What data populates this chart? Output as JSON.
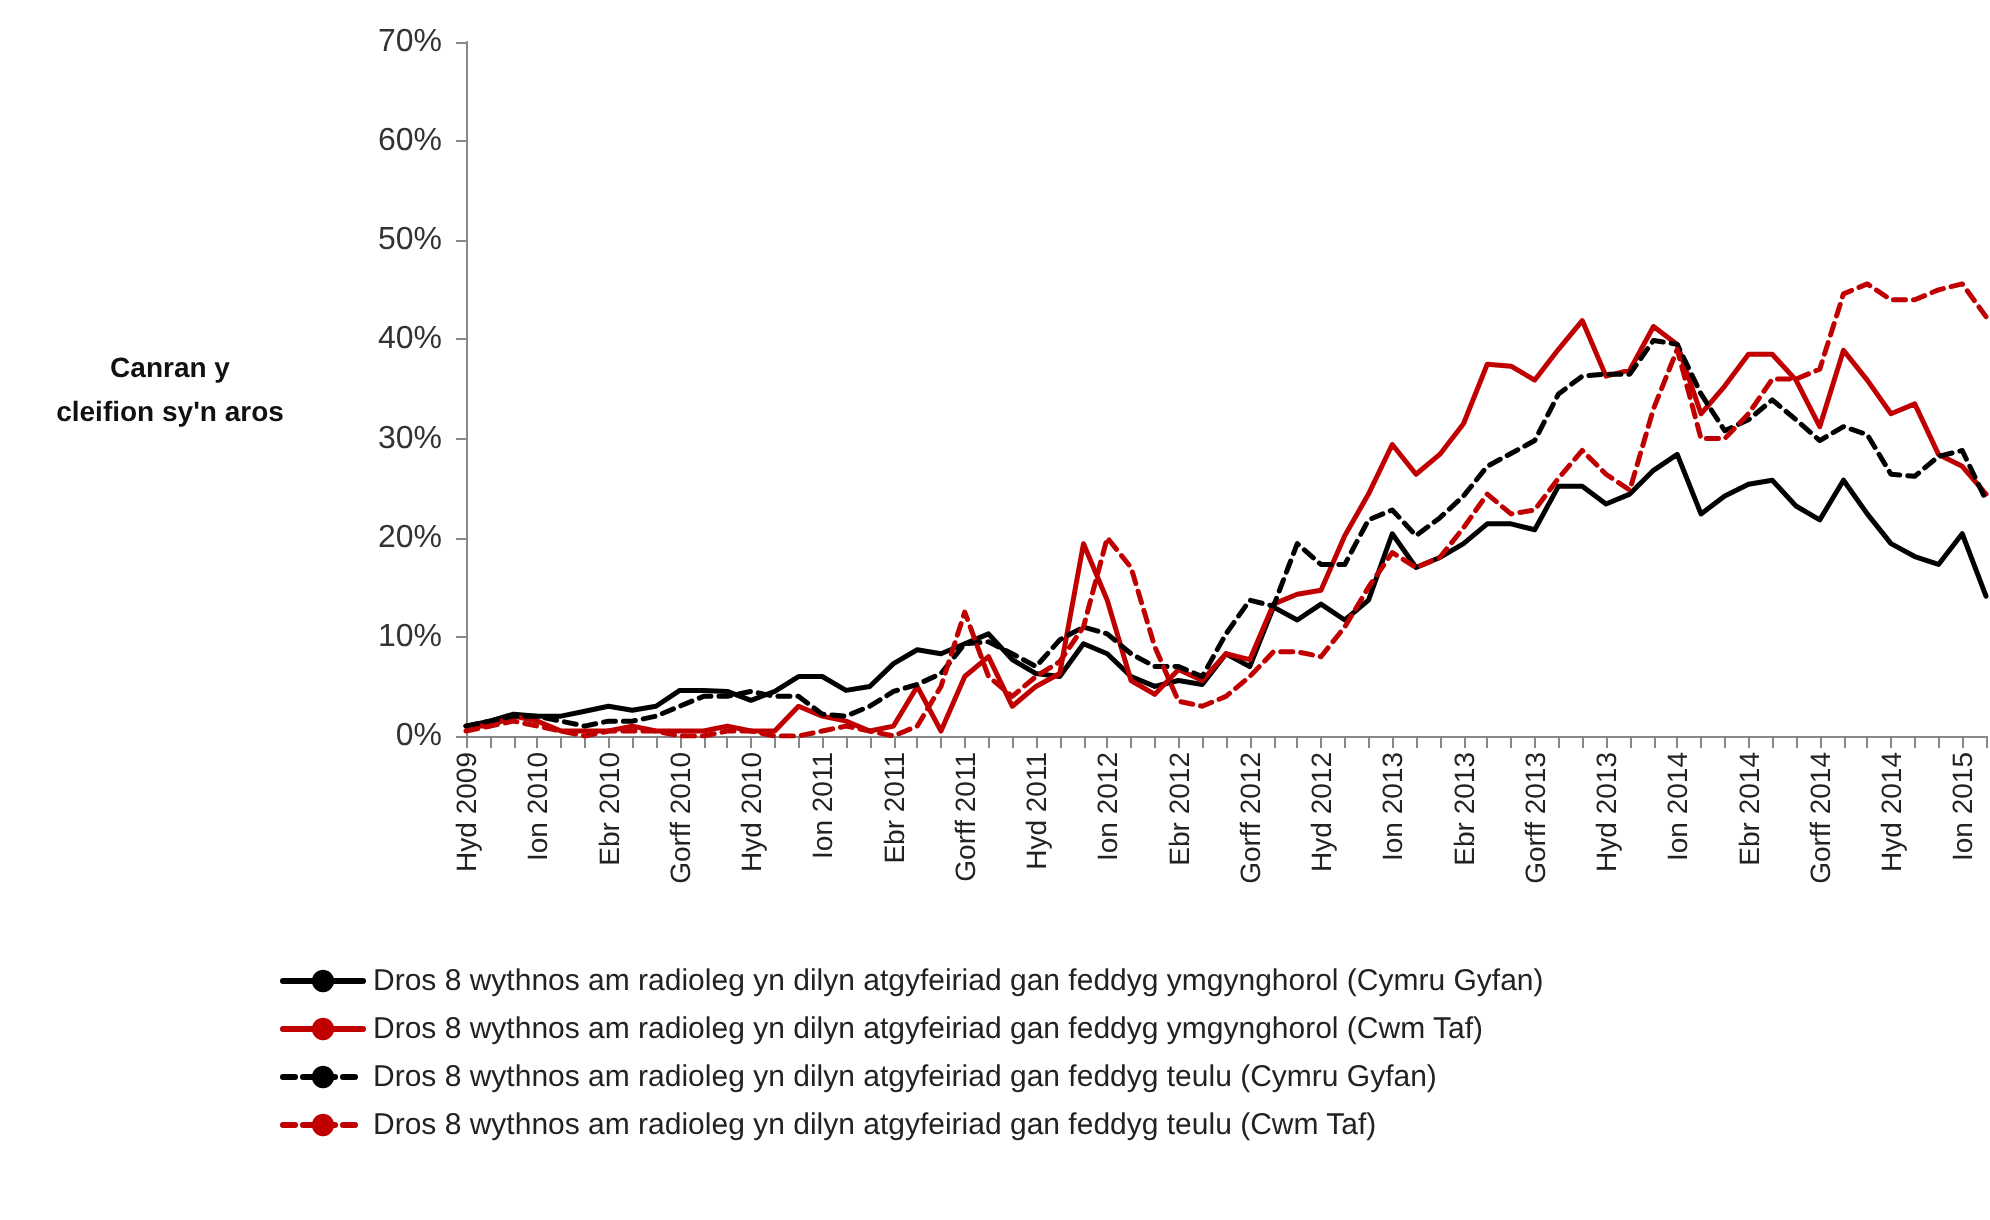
{
  "chart_data": {
    "type": "line",
    "ylabel": "Canran y\ncleifion sy'n aros",
    "categories": [
      "Hyd 2009",
      null,
      null,
      "Ion 2010",
      null,
      null,
      "Ebr 2010",
      null,
      null,
      "Gorff 2010",
      null,
      null,
      "Hyd 2010",
      null,
      null,
      "Ion 2011",
      null,
      null,
      "Ebr 2011",
      null,
      null,
      "Gorff 2011",
      null,
      null,
      "Hyd 2011",
      null,
      null,
      "Ion 2012",
      null,
      null,
      "Ebr 2012",
      null,
      null,
      "Gorff 2012",
      null,
      null,
      "Hyd 2012",
      null,
      null,
      "Ion 2013",
      null,
      null,
      "Ebr 2013",
      null,
      null,
      "Gorff 2013",
      null,
      null,
      "Hyd 2013",
      null,
      null,
      "Ion 2014",
      null,
      null,
      "Ebr 2014",
      null,
      null,
      "Gorff 2014",
      null,
      null,
      "Hyd 2014",
      null,
      null,
      "Ion 2015",
      null
    ],
    "ylim": [
      0,
      70
    ],
    "yticks": [
      {
        "value": 0,
        "label": "0%"
      },
      {
        "value": 10,
        "label": "10%"
      },
      {
        "value": 20,
        "label": "20%"
      },
      {
        "value": 30,
        "label": "30%"
      },
      {
        "value": 40,
        "label": "40%"
      },
      {
        "value": 50,
        "label": "50%"
      },
      {
        "value": 60,
        "label": "60%"
      },
      {
        "value": 70,
        "label": "70%"
      }
    ],
    "grid": false,
    "legend": "bottom",
    "marker": "none",
    "series": [
      {
        "name": "Dros 8 wythnos am radioleg yn dilyn atgyfeiriad gan feddyg ymgynghorol (Cymru Gyfan)",
        "color": "#000000",
        "line_style": "solid",
        "values": [
          1,
          1.5,
          2.2,
          2,
          2,
          2.5,
          3,
          2.6,
          3,
          4.6,
          4.6,
          4.5,
          3.6,
          4.5,
          6,
          6,
          4.6,
          5,
          7.3,
          8.7,
          8.3,
          9.3,
          10.3,
          7.7,
          6.3,
          6,
          9.3,
          8.3,
          6,
          5,
          5.6,
          5.2,
          8.3,
          7,
          13,
          11.7,
          13.3,
          11.7,
          13.7,
          20.4,
          17,
          18,
          19.4,
          21.4,
          21.4,
          20.8,
          25.2,
          25.2,
          23.4,
          24.4,
          26.8,
          28.4,
          22.4,
          24.2,
          25.4,
          25.8,
          23.2,
          21.8,
          25.8,
          22.4,
          19.4,
          18.1,
          17.3,
          20.4,
          14.1
        ]
      },
      {
        "name": "Dros 8 wythnos am radioleg yn dilyn atgyfeiriad gan feddyg ymgynghorol (Cwm Taf)",
        "color": "#c00000",
        "line_style": "solid",
        "values": [
          1,
          1,
          2,
          1.5,
          0.5,
          0.5,
          0.5,
          1,
          0.5,
          0.5,
          0.5,
          1,
          0.5,
          0.5,
          3,
          2,
          1.5,
          0.5,
          1,
          5,
          0.5,
          6,
          8,
          3,
          5,
          6.3,
          19.4,
          13.7,
          5.6,
          4.2,
          6.7,
          5.6,
          8.3,
          7.7,
          13.3,
          14.3,
          14.7,
          20.2,
          24.4,
          29.4,
          26.4,
          28.4,
          31.5,
          37.5,
          37.3,
          35.9,
          39,
          41.9,
          36.3,
          36.9,
          41.3,
          39.5,
          32.5,
          35.3,
          38.5,
          38.5,
          35.9,
          31.2,
          38.9,
          35.9,
          32.5,
          33.5,
          28.4,
          27.2,
          24.4
        ]
      },
      {
        "name": "Dros 8 wythnos am radioleg yn dilyn atgyfeiriad gan feddyg teulu (Cymru Gyfan)",
        "color": "#000000",
        "line_style": "dashed",
        "values": [
          1,
          1.5,
          2,
          2,
          1.5,
          1,
          1.5,
          1.5,
          2,
          3,
          4,
          4,
          4.5,
          4,
          4,
          2.2,
          2,
          3,
          4.5,
          5.2,
          6.3,
          9.3,
          9.5,
          8.3,
          7,
          9.7,
          11,
          10.3,
          8.3,
          7,
          7,
          6,
          10.3,
          13.7,
          13.1,
          19.4,
          17.3,
          17.3,
          21.8,
          22.8,
          20.2,
          22,
          24.2,
          27.2,
          28.5,
          29.8,
          34.5,
          36.3,
          36.5,
          36.5,
          39.9,
          39.5,
          34.5,
          30.8,
          31.9,
          33.9,
          31.9,
          29.8,
          31.2,
          30.4,
          26.4,
          26.2,
          28.2,
          28.8,
          23.8
        ]
      },
      {
        "name": "Dros 8 wythnos am radioleg yn dilyn atgyfeiriad gan feddyg teulu (Cwm Taf)",
        "color": "#c00000",
        "line_style": "dashed",
        "values": [
          0.5,
          1,
          1.5,
          1,
          0.5,
          0,
          0.5,
          0.5,
          0.5,
          0,
          0,
          0.5,
          0.5,
          0,
          0,
          0.5,
          1,
          0.5,
          0,
          1,
          5,
          12.5,
          6,
          4,
          6,
          7.5,
          11,
          20,
          17,
          9,
          3.5,
          3,
          4,
          6,
          8.5,
          8.5,
          8,
          11,
          15,
          18.5,
          17,
          18,
          21,
          24.4,
          22.4,
          22.8,
          26,
          28.8,
          26.4,
          24.8,
          33,
          39,
          30,
          30,
          32.5,
          36,
          36,
          37,
          44.6,
          45.6,
          44,
          44,
          45,
          45.6,
          42.3
        ]
      }
    ]
  }
}
